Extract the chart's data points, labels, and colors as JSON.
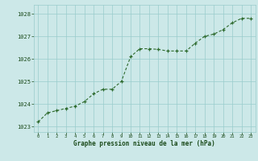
{
  "x": [
    0,
    1,
    2,
    3,
    4,
    5,
    6,
    7,
    8,
    9,
    10,
    11,
    12,
    13,
    14,
    15,
    16,
    17,
    18,
    19,
    20,
    21,
    22,
    23
  ],
  "y": [
    1023.2,
    1023.6,
    1023.7,
    1023.8,
    1023.9,
    1024.1,
    1024.45,
    1024.65,
    1024.65,
    1025.0,
    1026.1,
    1026.45,
    1026.45,
    1026.42,
    1026.35,
    1026.35,
    1026.35,
    1026.7,
    1027.0,
    1027.1,
    1027.3,
    1027.6,
    1027.8,
    1027.8
  ],
  "ylim": [
    1022.75,
    1028.4
  ],
  "yticks": [
    1023,
    1024,
    1025,
    1026,
    1027,
    1028
  ],
  "xticks": [
    0,
    1,
    2,
    3,
    4,
    5,
    6,
    7,
    8,
    9,
    10,
    11,
    12,
    13,
    14,
    15,
    16,
    17,
    18,
    19,
    20,
    21,
    22,
    23
  ],
  "line_color": "#2d6a2d",
  "marker_color": "#2d6a2d",
  "bg_color": "#cce8e8",
  "grid_color": "#99cccc",
  "xlabel": "Graphe pression niveau de la mer (hPa)",
  "xlabel_color": "#1a4a1a",
  "tick_color": "#1a4a1a"
}
